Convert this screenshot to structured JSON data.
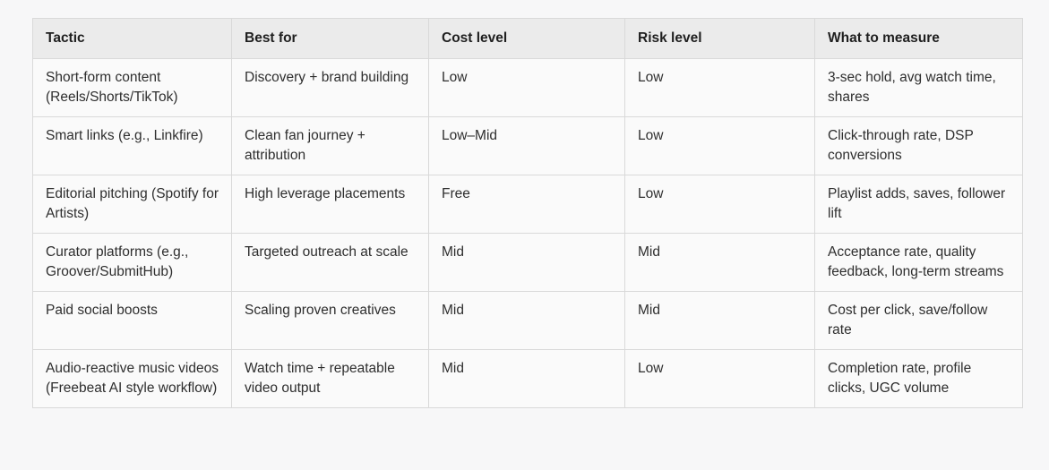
{
  "colors": {
    "page_bg": "#f7f7f8",
    "header_bg": "#ebebeb",
    "row_bg": "#fafafa",
    "border": "#d9d9d9",
    "header_text": "#1f1f1f",
    "body_text": "#2e2e2e"
  },
  "table": {
    "headers": [
      "Tactic",
      "Best for",
      "Cost level",
      "Risk level",
      "What to measure"
    ],
    "rows": [
      [
        "Short-form content (Reels/Shorts/TikTok)",
        "Discovery + brand building",
        "Low",
        "Low",
        "3-sec hold, avg watch time, shares"
      ],
      [
        "Smart links (e.g., Linkfire)",
        "Clean fan journey + attribution",
        "Low–Mid",
        "Low",
        "Click-through rate, DSP conversions"
      ],
      [
        "Editorial pitching (Spotify for Artists)",
        "High leverage placements",
        "Free",
        "Low",
        "Playlist adds, saves, follower lift"
      ],
      [
        "Curator platforms (e.g., Groover/SubmitHub)",
        "Targeted outreach at scale",
        "Mid",
        "Mid",
        "Acceptance rate, quality feedback, long-term streams"
      ],
      [
        "Paid social boosts",
        "Scaling proven creatives",
        "Mid",
        "Mid",
        "Cost per click, save/follow rate"
      ],
      [
        "Audio-reactive music videos (Freebeat AI style workflow)",
        "Watch time + repeatable video output",
        "Mid",
        "Low",
        "Completion rate, profile clicks, UGC volume"
      ]
    ]
  }
}
